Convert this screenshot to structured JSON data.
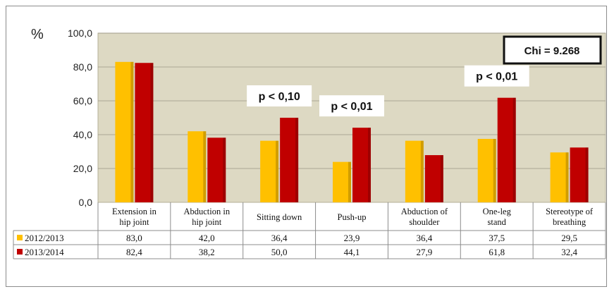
{
  "chart_data": {
    "type": "bar",
    "unit": "%",
    "categories": [
      [
        "Extension in",
        "hip joint"
      ],
      [
        "Abduction in",
        "hip joint"
      ],
      [
        "Sitting down"
      ],
      [
        "Push-up"
      ],
      [
        "Abduction of",
        "shoulder"
      ],
      [
        "One-leg",
        "stand"
      ],
      [
        "Stereotype of",
        "breathing"
      ]
    ],
    "series": [
      {
        "name": "2012/2013",
        "color": "#ffc000",
        "values": [
          83.0,
          42.0,
          36.4,
          23.9,
          36.4,
          37.5,
          29.5
        ],
        "labels": [
          "83,0",
          "42,0",
          "36,4",
          "23,9",
          "36,4",
          "37,5",
          "29,5"
        ]
      },
      {
        "name": "2013/2014",
        "color": "#c00000",
        "values": [
          82.4,
          38.2,
          50.0,
          44.1,
          27.9,
          61.8,
          32.4
        ],
        "labels": [
          "82,4",
          "38,2",
          "50,0",
          "44,1",
          "27,9",
          "61,8",
          "32,4"
        ]
      }
    ],
    "ylim": [
      0,
      100
    ],
    "yticks": [
      0,
      20,
      40,
      60,
      80,
      100
    ],
    "ytick_labels": [
      "0,0",
      "20,0",
      "40,0",
      "60,0",
      "80,0",
      "100,0"
    ],
    "grid": true,
    "plot_background": "#ddd9c3",
    "annotations": [
      {
        "category_index": 2,
        "text": "p < 0,10"
      },
      {
        "category_index": 3,
        "text": "p < 0,01"
      },
      {
        "category_index": 5,
        "text": "p < 0,01"
      }
    ],
    "statistic_box": "Chi = 9.268",
    "legend": "data-table"
  }
}
